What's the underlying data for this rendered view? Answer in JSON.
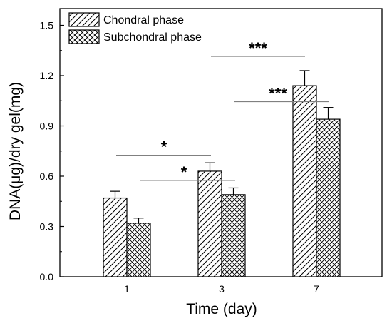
{
  "chart_data": {
    "type": "bar",
    "title": "",
    "xlabel": "Time (day)",
    "ylabel": "DNA(μg)/dry gel(mg)",
    "categories": [
      "1",
      "3",
      "7"
    ],
    "ylim": [
      0.0,
      1.6
    ],
    "yticks": [
      "0.0",
      "0.3",
      "0.6",
      "0.9",
      "1.2",
      "1.5"
    ],
    "series": [
      {
        "name": "Chondral phase",
        "pattern": "diagonal-hatch",
        "values": [
          0.47,
          0.63,
          1.14
        ],
        "errors": [
          0.04,
          0.05,
          0.09
        ]
      },
      {
        "name": "Subchondral phase",
        "pattern": "cross-hatch",
        "values": [
          0.32,
          0.49,
          0.94
        ],
        "errors": [
          0.03,
          0.04,
          0.07
        ]
      }
    ],
    "significance": [
      {
        "from": "1 Chondral phase",
        "to": "3 Chondral phase",
        "label": "*"
      },
      {
        "from": "1 Subchondral phase",
        "to": "3 Subchondral phase",
        "label": "*"
      },
      {
        "from": "3 Chondral phase",
        "to": "7 Chondral phase",
        "label": "***"
      },
      {
        "from": "3 Subchondral phase",
        "to": "7 Subchondral phase",
        "label": "***"
      }
    ],
    "legend_position": "top-left",
    "grid": false,
    "colors": {
      "stroke": "#000000",
      "sig_line": "#808080",
      "background": "#ffffff"
    }
  }
}
